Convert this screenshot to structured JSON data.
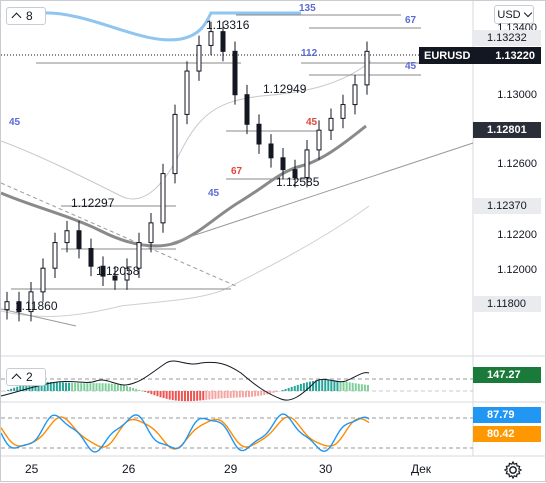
{
  "toolbar": {
    "pane_main_count": "8",
    "pane_osc_count": "2",
    "currency": "USD",
    "settings_icon": "gear-icon",
    "collapse_icon": "chevron-up-icon",
    "dropdown_icon": "chevron-down-icon"
  },
  "symbol": {
    "name": "EURUSD",
    "last_price": "1.13220"
  },
  "price_axis": {
    "labels": [
      "1.13400",
      "1.13000",
      "1.12600",
      "1.12200",
      "1.12000",
      "1.11800"
    ],
    "tags": [
      {
        "value": "1.13232",
        "style": "gray"
      },
      {
        "value": "1.12801",
        "style": "dark"
      },
      {
        "value": "1.12370",
        "style": "gray"
      },
      {
        "value": "1.11800",
        "style": "gray"
      }
    ]
  },
  "indicator_values": {
    "momentum": "147.27",
    "stoch_k": "87.79",
    "stoch_d": "80.42"
  },
  "time_axis": [
    "25",
    "26",
    "29",
    "30",
    "Дек"
  ],
  "annotations": {
    "price_labels": [
      "1.13316",
      "1.12949",
      "1.12585",
      "1.12297",
      "1.12058",
      "1.11860"
    ],
    "counts": [
      {
        "text": "135",
        "color": "#5b6bd6"
      },
      {
        "text": "67",
        "color": "#5b6bd6"
      },
      {
        "text": "112",
        "color": "#5b6bd6"
      },
      {
        "text": "45",
        "color": "#5b6bd6"
      },
      {
        "text": "45",
        "color": "#5b6bd6"
      },
      {
        "text": "45",
        "color": "#e0463c"
      },
      {
        "text": "67",
        "color": "#e0463c"
      },
      {
        "text": "45",
        "color": "#5b6bd6"
      }
    ]
  },
  "colors": {
    "up": "#26a69a",
    "down": "#ef5350",
    "candle": "#131722",
    "ma_fast": "#8a8a8a",
    "ma_top": "#90c5f0",
    "stoch_k": "#2196f3",
    "stoch_d": "#ff8c00",
    "momentum_tag": "#1a7a3a",
    "stoch_k_tag": "#2196f3",
    "stoch_d_tag": "#ff9800",
    "last_tag": "#131722"
  },
  "chart_data": {
    "type": "candlestick",
    "symbol": "EURUSD",
    "x": [
      "25",
      "26",
      "29",
      "30",
      "Дек"
    ],
    "ohlc_close_approx": [
      1.1195,
      1.119,
      1.12,
      1.1212,
      1.1225,
      1.1231,
      1.1222,
      1.1213,
      1.1208,
      1.1206,
      1.1212,
      1.1225,
      1.1235,
      1.126,
      1.129,
      1.1312,
      1.1325,
      1.1332,
      1.1322,
      1.13,
      1.1285,
      1.1275,
      1.1268,
      1.1262,
      1.1258,
      1.1272,
      1.1282,
      1.1288,
      1.1295,
      1.1305,
      1.1322
    ],
    "ylim": [
      1.117,
      1.1345
    ],
    "oscillators": {
      "momentum": 147.27,
      "stochastic_k": 87.79,
      "stochastic_d": 80.42
    }
  }
}
